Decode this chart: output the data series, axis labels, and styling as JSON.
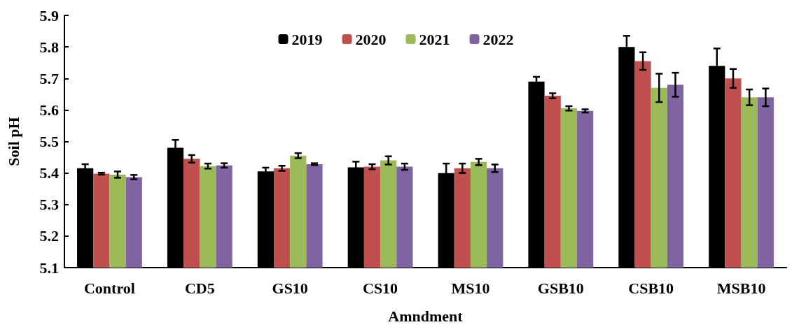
{
  "chart_data": {
    "type": "bar",
    "xlabel": "Amndment",
    "ylabel": "Soil pH",
    "categories": [
      "Control",
      "CD5",
      "GS10",
      "CS10",
      "MS10",
      "GSB10",
      "CSB10",
      "MSB10"
    ],
    "series": [
      {
        "name": "2019",
        "color": "#000000",
        "values": [
          5.415,
          5.48,
          5.405,
          5.418,
          5.4,
          5.69,
          5.8,
          5.74
        ],
        "errors": [
          0.013,
          0.025,
          0.012,
          0.018,
          0.03,
          0.015,
          0.035,
          0.055
        ]
      },
      {
        "name": "2020",
        "color": "#c0504d",
        "values": [
          5.398,
          5.445,
          5.415,
          5.42,
          5.415,
          5.645,
          5.755,
          5.7
        ],
        "errors": [
          0.003,
          0.012,
          0.008,
          0.008,
          0.015,
          0.008,
          0.028,
          0.03
        ]
      },
      {
        "name": "2021",
        "color": "#9bbb59",
        "values": [
          5.395,
          5.422,
          5.455,
          5.44,
          5.435,
          5.605,
          5.67,
          5.64
        ],
        "errors": [
          0.01,
          0.008,
          0.008,
          0.013,
          0.01,
          0.007,
          0.045,
          0.025
        ]
      },
      {
        "name": "2022",
        "color": "#8064a2",
        "values": [
          5.387,
          5.424,
          5.428,
          5.42,
          5.415,
          5.597,
          5.68,
          5.64
        ],
        "errors": [
          0.007,
          0.007,
          0.003,
          0.01,
          0.012,
          0.005,
          0.038,
          0.028
        ]
      }
    ],
    "ylim": [
      5.1,
      5.9
    ],
    "yticks": [
      5.1,
      5.2,
      5.3,
      5.4,
      5.5,
      5.6,
      5.7,
      5.8,
      5.9
    ],
    "grid": false,
    "legend": "top"
  }
}
